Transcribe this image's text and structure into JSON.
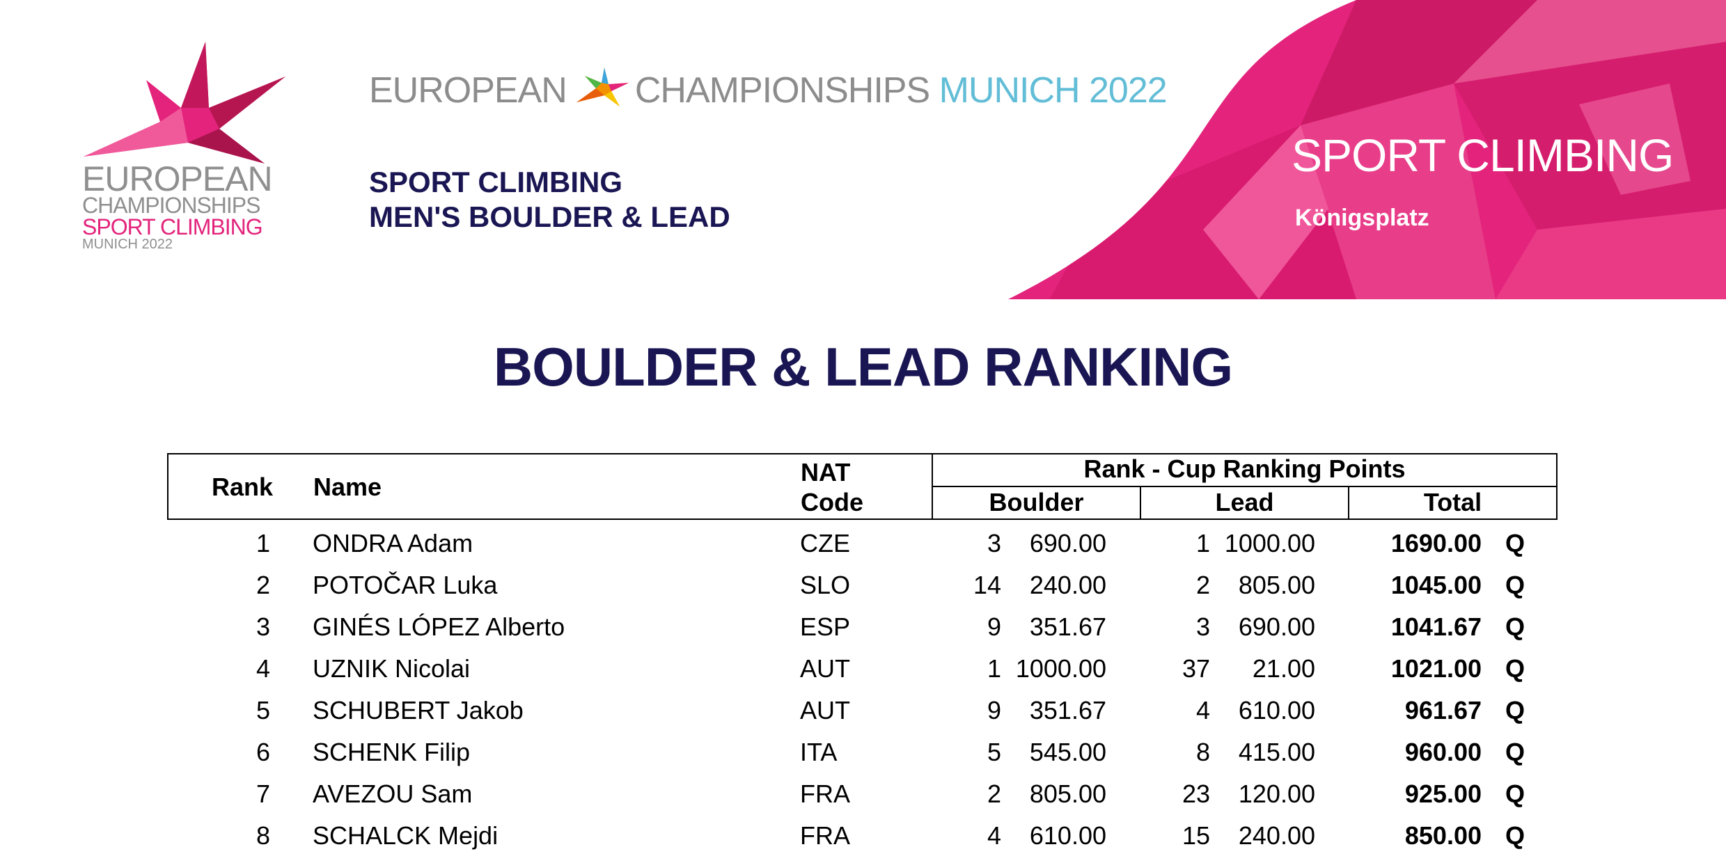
{
  "colors": {
    "accent_pink": "#e3237c",
    "navy": "#1a1653",
    "light_blue": "#62bdd6",
    "grey": "#8c8c8c"
  },
  "logo": {
    "line1": "EUROPEAN",
    "line2": "CHAMPIONSHIPS",
    "line3": "SPORT CLIMBING",
    "line4": "MUNICH 2022",
    "icon": "star-emblem-icon"
  },
  "wordmark": {
    "part1": "EUROPEAN",
    "part2": "CHAMPIONSHIPS",
    "part3": "MUNICH 2022",
    "icon": "colored-star-icon"
  },
  "banner": {
    "sport": "SPORT CLIMBING",
    "venue": "Königsplatz"
  },
  "discipline": {
    "line1": "SPORT CLIMBING",
    "line2": "MEN'S BOULDER & LEAD"
  },
  "title": "BOULDER & LEAD RANKING",
  "table": {
    "headers": {
      "rank": "Rank",
      "name": "Name",
      "nat_line1": "NAT",
      "nat_line2": "Code",
      "group": "Rank - Cup Ranking Points",
      "boulder": "Boulder",
      "lead": "Lead",
      "total": "Total"
    },
    "rows": [
      {
        "rank": "1",
        "name": "ONDRA Adam",
        "nat": "CZE",
        "b_rank": "3",
        "b_pts": "690.00",
        "l_rank": "1",
        "l_pts": "1000.00",
        "total": "1690.00",
        "q": "Q"
      },
      {
        "rank": "2",
        "name": "POTOČAR Luka",
        "nat": "SLO",
        "b_rank": "14",
        "b_pts": "240.00",
        "l_rank": "2",
        "l_pts": "805.00",
        "total": "1045.00",
        "q": "Q"
      },
      {
        "rank": "3",
        "name": "GINÉS LÓPEZ Alberto",
        "nat": "ESP",
        "b_rank": "9",
        "b_pts": "351.67",
        "l_rank": "3",
        "l_pts": "690.00",
        "total": "1041.67",
        "q": "Q"
      },
      {
        "rank": "4",
        "name": "UZNIK  Nicolai",
        "nat": "AUT",
        "b_rank": "1",
        "b_pts": "1000.00",
        "l_rank": "37",
        "l_pts": "21.00",
        "total": "1021.00",
        "q": "Q"
      },
      {
        "rank": "5",
        "name": "SCHUBERT Jakob",
        "nat": "AUT",
        "b_rank": "9",
        "b_pts": "351.67",
        "l_rank": "4",
        "l_pts": "610.00",
        "total": "961.67",
        "q": "Q"
      },
      {
        "rank": "6",
        "name": "SCHENK Filip",
        "nat": "ITA",
        "b_rank": "5",
        "b_pts": "545.00",
        "l_rank": "8",
        "l_pts": "415.00",
        "total": "960.00",
        "q": "Q"
      },
      {
        "rank": "7",
        "name": "AVEZOU Sam",
        "nat": "FRA",
        "b_rank": "2",
        "b_pts": "805.00",
        "l_rank": "23",
        "l_pts": "120.00",
        "total": "925.00",
        "q": "Q"
      },
      {
        "rank": "8",
        "name": "SCHALCK Mejdi",
        "nat": "FRA",
        "b_rank": "4",
        "b_pts": "610.00",
        "l_rank": "15",
        "l_pts": "240.00",
        "total": "850.00",
        "q": "Q"
      }
    ]
  }
}
